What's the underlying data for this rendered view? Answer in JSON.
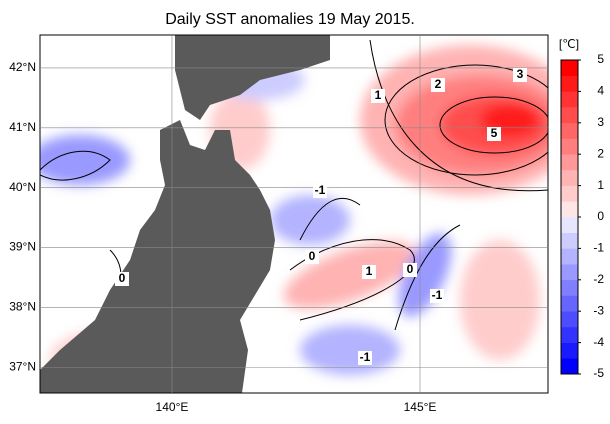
{
  "title": "Daily SST anomalies 19 May 2015.",
  "map": {
    "lonlim": [
      137.34,
      147.58
    ],
    "latlim": [
      36.57,
      42.55
    ],
    "lat_ticks": [
      {
        "value": 42,
        "label": "42°N"
      },
      {
        "value": 41,
        "label": "41°N"
      },
      {
        "value": 40,
        "label": "40°N"
      },
      {
        "value": 39,
        "label": "39°N"
      },
      {
        "value": 38,
        "label": "38°N"
      },
      {
        "value": 37,
        "label": "37°N"
      }
    ],
    "lon_ticks": [
      {
        "value": 140,
        "label": "140°E"
      },
      {
        "value": 145,
        "label": "145°E"
      }
    ],
    "contour_labels": [
      1,
      2,
      3,
      5,
      -1,
      0,
      1,
      0,
      -1,
      -1,
      0
    ]
  },
  "colorbar": {
    "unit": "[℃]",
    "lim": [
      -5,
      5
    ],
    "ticks": [
      5,
      4,
      3,
      2,
      1,
      0,
      -1,
      -2,
      -3,
      -4,
      -5
    ],
    "colors": [
      "#0000ff",
      "#1a1aff",
      "#3333ff",
      "#4d4dff",
      "#6666ff",
      "#7f7fff",
      "#9999ff",
      "#b3b3ff",
      "#ccccff",
      "#e6e6ff",
      "#ffe6e6",
      "#ffcccc",
      "#ffb3b3",
      "#ff9999",
      "#ff7f7f",
      "#ff6666",
      "#ff4d4d",
      "#ff3333",
      "#ff1a1a",
      "#ff0000"
    ]
  }
}
